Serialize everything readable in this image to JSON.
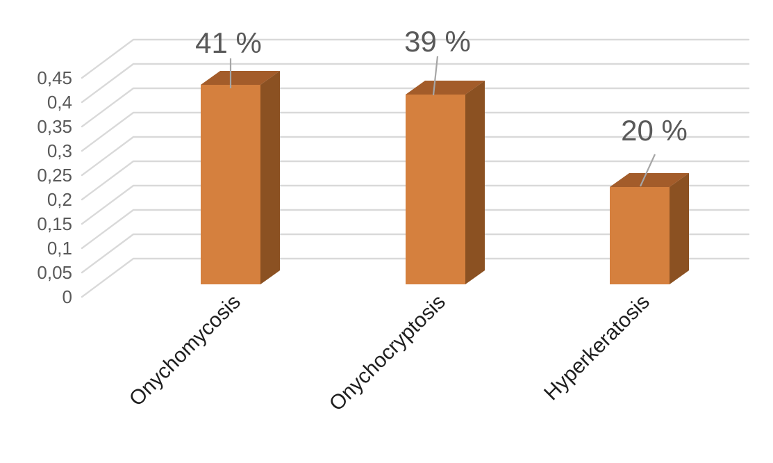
{
  "chart_data": {
    "type": "bar",
    "style": "3d-column",
    "title": "",
    "xlabel": "",
    "ylabel": "",
    "categories": [
      "Onychomycosis",
      "Onychocryptosis",
      "Hyperkeratosis"
    ],
    "values": [
      0.41,
      0.39,
      0.2
    ],
    "data_labels": [
      "41 %",
      "39 %",
      "20 %"
    ],
    "y_ticks": [
      "0",
      "0,05",
      "0,1",
      "0,15",
      "0,2",
      "0,25",
      "0,3",
      "0,35",
      "0,4",
      "0,45"
    ],
    "y_tick_values": [
      0,
      0.05,
      0.1,
      0.15,
      0.2,
      0.25,
      0.3,
      0.35,
      0.4,
      0.45
    ],
    "ylim": [
      0,
      0.45
    ],
    "decimal_separator": ",",
    "grid": true,
    "legend": "none",
    "colors": {
      "bar_front": "#D5803E",
      "bar_top": "#A35C2A",
      "bar_side": "#8B5122",
      "gridline": "#D9D9D9",
      "leader_line": "#A6A6A6",
      "data_label_text": "#595959",
      "axis_tick_text": "#595959",
      "category_text": "#1F1F1F",
      "background": "#FFFFFF"
    }
  }
}
